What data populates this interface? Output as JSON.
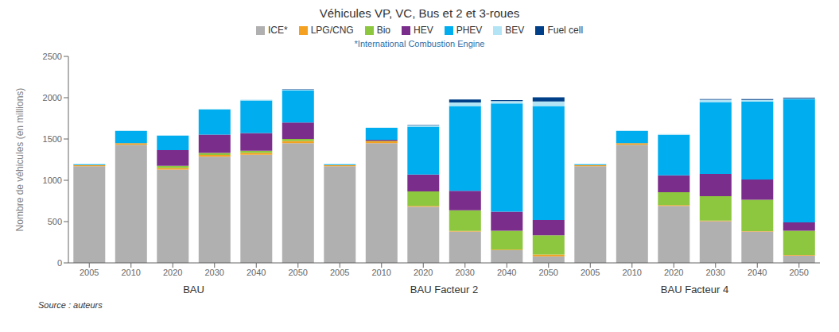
{
  "chart_data": {
    "type": "bar",
    "stacked": true,
    "grid": false,
    "legend": "top",
    "title": "Véhicules VP, VC, Bus et 2 et 3-roues",
    "subtitle": "*International Combustion Engine",
    "ylabel": "Nombre de véhicules (en millions)",
    "annotations": [
      "Source : auteurs"
    ],
    "groups": [
      "BAU",
      "BAU Facteur 2",
      "BAU Facteur 4"
    ],
    "categories": [
      "2005",
      "2010",
      "2020",
      "2030",
      "2040",
      "2050",
      "2005",
      "2010",
      "2020",
      "2030",
      "2040",
      "2050",
      "2005",
      "2010",
      "2020",
      "2030",
      "2040",
      "2050"
    ],
    "ylim": [
      0,
      2500
    ],
    "yticks": [
      0,
      500,
      1000,
      1500,
      2000,
      2500
    ],
    "series": [
      {
        "name": "ICE*",
        "color": "#b0b0b0",
        "values": [
          1170,
          1430,
          1130,
          1285,
          1310,
          1450,
          1170,
          1450,
          680,
          380,
          155,
          80,
          1170,
          1430,
          690,
          505,
          380,
          90
        ]
      },
      {
        "name": "LPG/CNG",
        "color": "#f4a020",
        "values": [
          15,
          20,
          20,
          22,
          22,
          25,
          15,
          20,
          10,
          8,
          5,
          20,
          15,
          20,
          10,
          8,
          5,
          5
        ]
      },
      {
        "name": "Bio",
        "color": "#8dc63f",
        "values": [
          0,
          0,
          25,
          25,
          25,
          25,
          0,
          8,
          175,
          250,
          230,
          235,
          0,
          0,
          155,
          295,
          380,
          295
        ]
      },
      {
        "name": "HEV",
        "color": "#7b2d8b",
        "values": [
          0,
          0,
          190,
          220,
          215,
          200,
          0,
          12,
          205,
          235,
          230,
          185,
          0,
          0,
          205,
          270,
          245,
          100
        ]
      },
      {
        "name": "PHEV",
        "color": "#00aeef",
        "values": [
          10,
          145,
          175,
          305,
          395,
          390,
          10,
          145,
          580,
          1025,
          1310,
          1380,
          10,
          145,
          490,
          870,
          945,
          1490
        ]
      },
      {
        "name": "BEV",
        "color": "#b3e4f5",
        "values": [
          5,
          8,
          5,
          8,
          8,
          8,
          5,
          5,
          15,
          45,
          30,
          55,
          5,
          8,
          10,
          28,
          18,
          10
        ]
      },
      {
        "name": "Fuel cell",
        "color": "#003f87",
        "values": [
          0,
          0,
          0,
          0,
          0,
          5,
          0,
          0,
          5,
          35,
          10,
          50,
          0,
          0,
          0,
          8,
          10,
          10
        ]
      }
    ]
  }
}
